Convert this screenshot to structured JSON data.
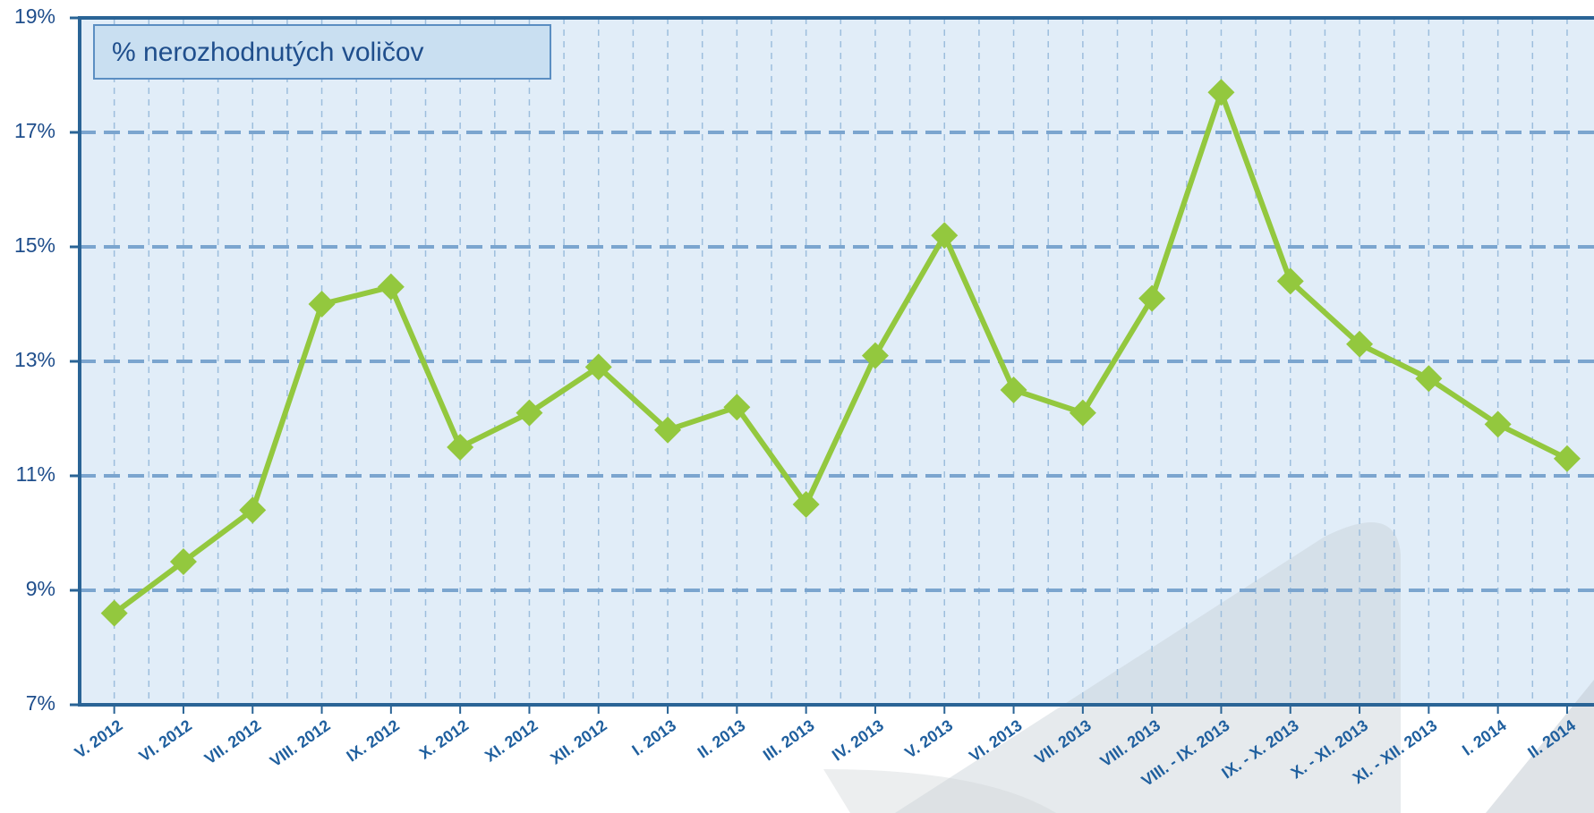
{
  "chart_data": {
    "type": "line",
    "categories": [
      "V. 2012",
      "VI. 2012",
      "VII. 2012",
      "VIII. 2012",
      "IX. 2012",
      "X. 2012",
      "XI. 2012",
      "XII. 2012",
      "I. 2013",
      "II. 2013",
      "III. 2013",
      "IV. 2013",
      "V. 2013",
      "VI. 2013",
      "VII. 2013",
      "VIII. 2013",
      "VIII. - IX. 2013",
      "IX. - X. 2013",
      "X. - XI. 2013",
      "XI. - XII. 2013",
      "I. 2014",
      "II. 2014"
    ],
    "series": [
      {
        "name": "% nerozhodnutých voličov",
        "color": "#93c83e",
        "values": [
          8.6,
          9.5,
          10.4,
          14.0,
          14.3,
          11.5,
          12.1,
          12.9,
          11.8,
          12.2,
          10.5,
          13.1,
          15.2,
          12.5,
          12.1,
          14.1,
          17.7,
          14.4,
          13.3,
          12.7,
          11.9,
          11.3
        ]
      }
    ],
    "ylim": [
      7,
      19
    ],
    "yticks": [
      {
        "value": 7,
        "label": "7%"
      },
      {
        "value": 9,
        "label": "9%"
      },
      {
        "value": 11,
        "label": "11%"
      },
      {
        "value": 13,
        "label": "13%"
      },
      {
        "value": 15,
        "label": "15%"
      },
      {
        "value": 17,
        "label": "17%"
      },
      {
        "value": 19,
        "label": "19%"
      }
    ],
    "grid": true,
    "legend": "upper left"
  }
}
